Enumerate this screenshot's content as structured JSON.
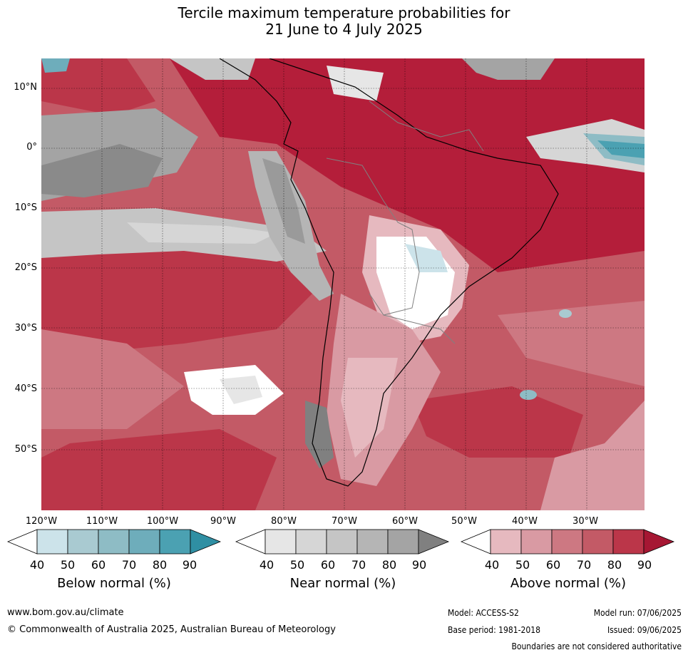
{
  "title_line1": "Tercile maximum temperature probabilities for",
  "title_line2": "21 June to 4 July 2025",
  "lat_labels": [
    "10°N",
    "0°",
    "10°S",
    "20°S",
    "30°S",
    "40°S",
    "50°S"
  ],
  "lon_labels": [
    "120°W",
    "110°W",
    "100°W",
    "90°W",
    "80°W",
    "70°W",
    "60°W",
    "50°W",
    "40°W",
    "30°W"
  ],
  "legends": {
    "below": {
      "title": "Below normal (%)",
      "ticks": [
        "40",
        "50",
        "60",
        "70",
        "80",
        "90"
      ],
      "colors": [
        "#ffffff",
        "#cce3ea",
        "#a9cad1",
        "#8ebcc5",
        "#6eadbb",
        "#4ba1b2",
        "#2f8fa3"
      ]
    },
    "near": {
      "title": "Near normal (%)",
      "ticks": [
        "40",
        "50",
        "60",
        "70",
        "80",
        "90"
      ],
      "colors": [
        "#ffffff",
        "#e6e6e6",
        "#d6d6d6",
        "#c5c5c5",
        "#b5b5b5",
        "#a4a4a4",
        "#808080"
      ]
    },
    "above": {
      "title": "Above normal (%)",
      "ticks": [
        "40",
        "50",
        "60",
        "70",
        "80",
        "90"
      ],
      "colors": [
        "#ffffff",
        "#e6b9bf",
        "#d99aa3",
        "#cd7882",
        "#c35a66",
        "#bb3649",
        "#a61733"
      ]
    }
  },
  "footer": {
    "website": "www.bom.gov.au/climate",
    "copyright": "© Commonwealth of Australia 2025, Australian Bureau of Meteorology",
    "model": "Model: ACCESS-S2",
    "model_run": "Model run: 07/06/2025",
    "base_period": "Base period: 1981-2018",
    "issued": "Issued: 09/06/2025",
    "disclaimer": "Boundaries are not considered authoritative"
  }
}
